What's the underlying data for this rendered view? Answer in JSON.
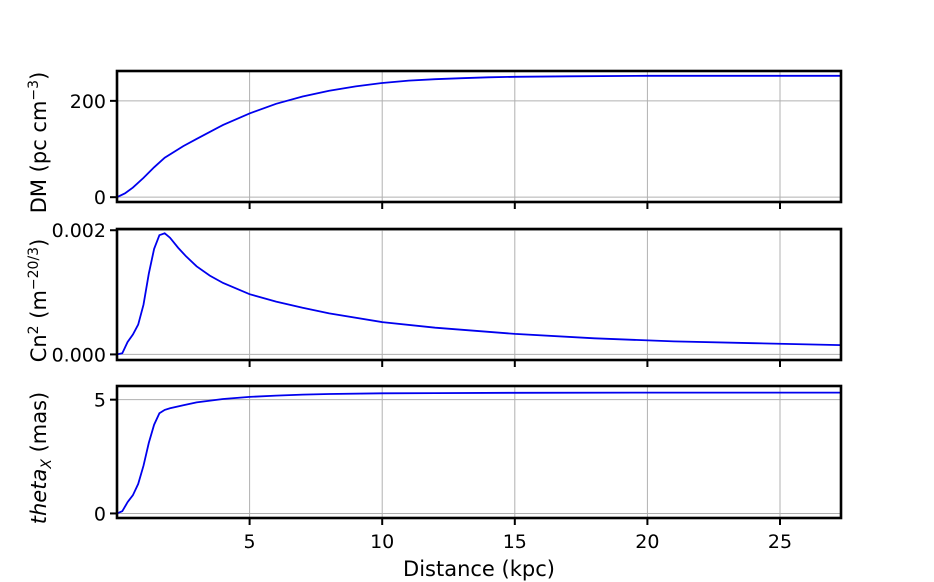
{
  "chart_data": [
    {
      "type": "line",
      "ylabel": "DM (pc cm$^{-3}$)",
      "xlim": [
        0,
        27.3
      ],
      "ylim": [
        -10,
        262
      ],
      "yticks": [
        0,
        200
      ],
      "yticklabels": [
        "0",
        "200"
      ],
      "xticks": [
        5,
        10,
        15,
        20,
        25
      ],
      "grid": true,
      "series": [
        {
          "color": "#0000ee",
          "x": [
            0,
            0.3,
            0.6,
            1.0,
            1.4,
            1.8,
            2.5,
            3.0,
            4.0,
            5.0,
            6.0,
            7.0,
            8.0,
            9.0,
            10.0,
            11.0,
            12.0,
            13.0,
            14.0,
            15.0,
            17.0,
            20.0,
            23.0,
            27.3
          ],
          "y": [
            0,
            8,
            20,
            40,
            62,
            82,
            106,
            121,
            150,
            174,
            194,
            209,
            221,
            230,
            237,
            242,
            245,
            247,
            249,
            250,
            251,
            252,
            252,
            252
          ]
        }
      ]
    },
    {
      "type": "line",
      "ylabel": "Cn$^2$ (m$^{-20/3}$)",
      "xlim": [
        0,
        27.3
      ],
      "ylim": [
        -9e-05,
        0.00202
      ],
      "yticks": [
        0,
        0.002
      ],
      "yticklabels": [
        "0.000",
        "0.002"
      ],
      "xticks": [
        5,
        10,
        15,
        20,
        25
      ],
      "grid": true,
      "series": [
        {
          "color": "#0000ee",
          "x": [
            0,
            0.2,
            0.4,
            0.6,
            0.8,
            1.0,
            1.2,
            1.4,
            1.6,
            1.8,
            2.0,
            2.3,
            2.6,
            3.0,
            3.5,
            4.0,
            5.0,
            6.0,
            7.0,
            8.0,
            10.0,
            12.0,
            15.0,
            18.0,
            21.0,
            24.0,
            27.3
          ],
          "y": [
            0,
            2e-05,
            0.0002,
            0.00032,
            0.00048,
            0.0008,
            0.0013,
            0.0017,
            0.00192,
            0.00195,
            0.00188,
            0.00172,
            0.00158,
            0.00142,
            0.00127,
            0.00115,
            0.00097,
            0.00085,
            0.00075,
            0.00066,
            0.00052,
            0.00043,
            0.00033,
            0.00026,
            0.00021,
            0.00018,
            0.00015
          ]
        }
      ]
    },
    {
      "type": "line",
      "ylabel": "$theta_X$ (mas)",
      "xlim": [
        0,
        27.3
      ],
      "ylim": [
        -0.2,
        5.6
      ],
      "yticks": [
        0,
        5
      ],
      "yticklabels": [
        "0",
        "5"
      ],
      "xticks": [
        5,
        10,
        15,
        20,
        25
      ],
      "xticklabels": [
        "5",
        "10",
        "15",
        "20",
        "25"
      ],
      "xlabel": "Distance (kpc)",
      "grid": true,
      "series": [
        {
          "color": "#0000ee",
          "x": [
            0,
            0.2,
            0.4,
            0.6,
            0.8,
            1.0,
            1.2,
            1.4,
            1.6,
            1.8,
            2.0,
            2.5,
            3.0,
            4.0,
            5.0,
            6.0,
            7.0,
            8.0,
            10.0,
            12.0,
            15.0,
            20.0,
            25.0,
            27.3
          ],
          "y": [
            0,
            0.1,
            0.5,
            0.8,
            1.3,
            2.1,
            3.1,
            3.9,
            4.4,
            4.55,
            4.62,
            4.75,
            4.88,
            5.03,
            5.12,
            5.18,
            5.22,
            5.25,
            5.28,
            5.29,
            5.3,
            5.31,
            5.31,
            5.31
          ]
        }
      ]
    }
  ]
}
